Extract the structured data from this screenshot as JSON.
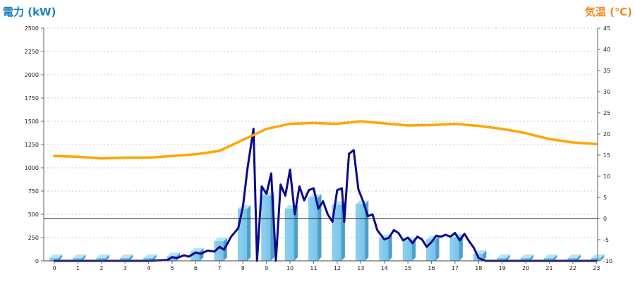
{
  "chart_data": {
    "type": "bar+line",
    "left_axis": {
      "label": "電力 (kW)",
      "range": [
        0,
        2500
      ],
      "ticks": [
        "0",
        "250",
        "500",
        "750",
        "1000",
        "1250",
        "1500",
        "1750",
        "2000",
        "2250",
        "2500"
      ],
      "color": "#1a7fc1"
    },
    "right_axis": {
      "label": "気温 (℃)",
      "range": [
        -10,
        45
      ],
      "ticks": [
        "-10",
        "-5",
        "0",
        "5",
        "10",
        "15",
        "20",
        "25",
        "30",
        "35",
        "40",
        "45"
      ],
      "color": "#f08a1c"
    },
    "x_axis": {
      "ticks": [
        "0",
        "1",
        "2",
        "3",
        "4",
        "5",
        "6",
        "7",
        "8",
        "9",
        "10",
        "11",
        "12",
        "13",
        "14",
        "15",
        "16",
        "17",
        "18",
        "19",
        "20",
        "21",
        "22",
        "23"
      ]
    },
    "grid": "horizontal dashed",
    "series": [
      {
        "kind": "bar",
        "axis": "left",
        "color": "#87ceeb",
        "x": [
          0,
          1,
          2,
          3,
          4,
          5,
          6,
          7,
          8,
          9,
          10,
          11,
          12,
          13,
          14,
          15,
          16,
          17,
          18,
          19,
          20,
          21,
          22,
          23
        ],
        "values": [
          30,
          30,
          30,
          30,
          30,
          50,
          100,
          210,
          560,
          700,
          560,
          680,
          600,
          610,
          245,
          215,
          230,
          250,
          75,
          30,
          30,
          30,
          30,
          30
        ]
      },
      {
        "kind": "line",
        "axis": "left",
        "color": "#0a0a8c",
        "x": [
          0,
          1,
          2,
          3,
          4,
          4.8,
          5,
          5.2,
          5.5,
          5.7,
          6,
          6.2,
          6.5,
          6.8,
          7,
          7.2,
          7.5,
          7.8,
          8,
          8.2,
          8.45,
          8.6,
          8.8,
          9,
          9.2,
          9.4,
          9.6,
          9.8,
          10,
          10.2,
          10.4,
          10.6,
          10.8,
          11,
          11.2,
          11.4,
          11.6,
          11.8,
          12,
          12.2,
          12.3,
          12.5,
          12.7,
          12.9,
          13.1,
          13.3,
          13.5,
          13.7,
          14,
          14.2,
          14.4,
          14.6,
          14.8,
          15,
          15.2,
          15.4,
          15.6,
          15.8,
          16,
          16.2,
          16.4,
          16.6,
          16.8,
          17,
          17.2,
          17.4,
          17.6,
          17.8,
          18,
          18.3,
          19,
          20,
          21,
          22,
          23
        ],
        "values": [
          0,
          0,
          0,
          0,
          0,
          10,
          40,
          30,
          60,
          45,
          90,
          75,
          110,
          100,
          150,
          120,
          260,
          350,
          580,
          1000,
          1420,
          0,
          800,
          720,
          940,
          0,
          820,
          700,
          980,
          500,
          800,
          650,
          760,
          780,
          560,
          640,
          500,
          420,
          760,
          780,
          420,
          1150,
          1190,
          770,
          640,
          480,
          500,
          330,
          230,
          250,
          330,
          300,
          220,
          250,
          190,
          260,
          230,
          150,
          200,
          270,
          260,
          280,
          260,
          300,
          220,
          290,
          210,
          140,
          30,
          0,
          0,
          0,
          0,
          0,
          0
        ]
      },
      {
        "kind": "line",
        "axis": "right",
        "color": "#ffa500",
        "x": [
          0,
          1,
          2,
          3,
          4,
          5,
          6,
          7,
          8,
          9,
          10,
          11,
          12,
          13,
          14,
          15,
          16,
          17,
          18,
          19,
          20,
          21,
          22,
          23
        ],
        "values": [
          14.8,
          14.6,
          14.2,
          14.4,
          14.4,
          14.8,
          15.2,
          16.0,
          18.6,
          21.2,
          22.4,
          22.6,
          22.4,
          23.0,
          22.5,
          22.0,
          22.1,
          22.4,
          21.9,
          21.2,
          20.2,
          18.8,
          18.0,
          17.6
        ]
      }
    ],
    "reference_line": {
      "axis": "right",
      "value": 0
    }
  }
}
